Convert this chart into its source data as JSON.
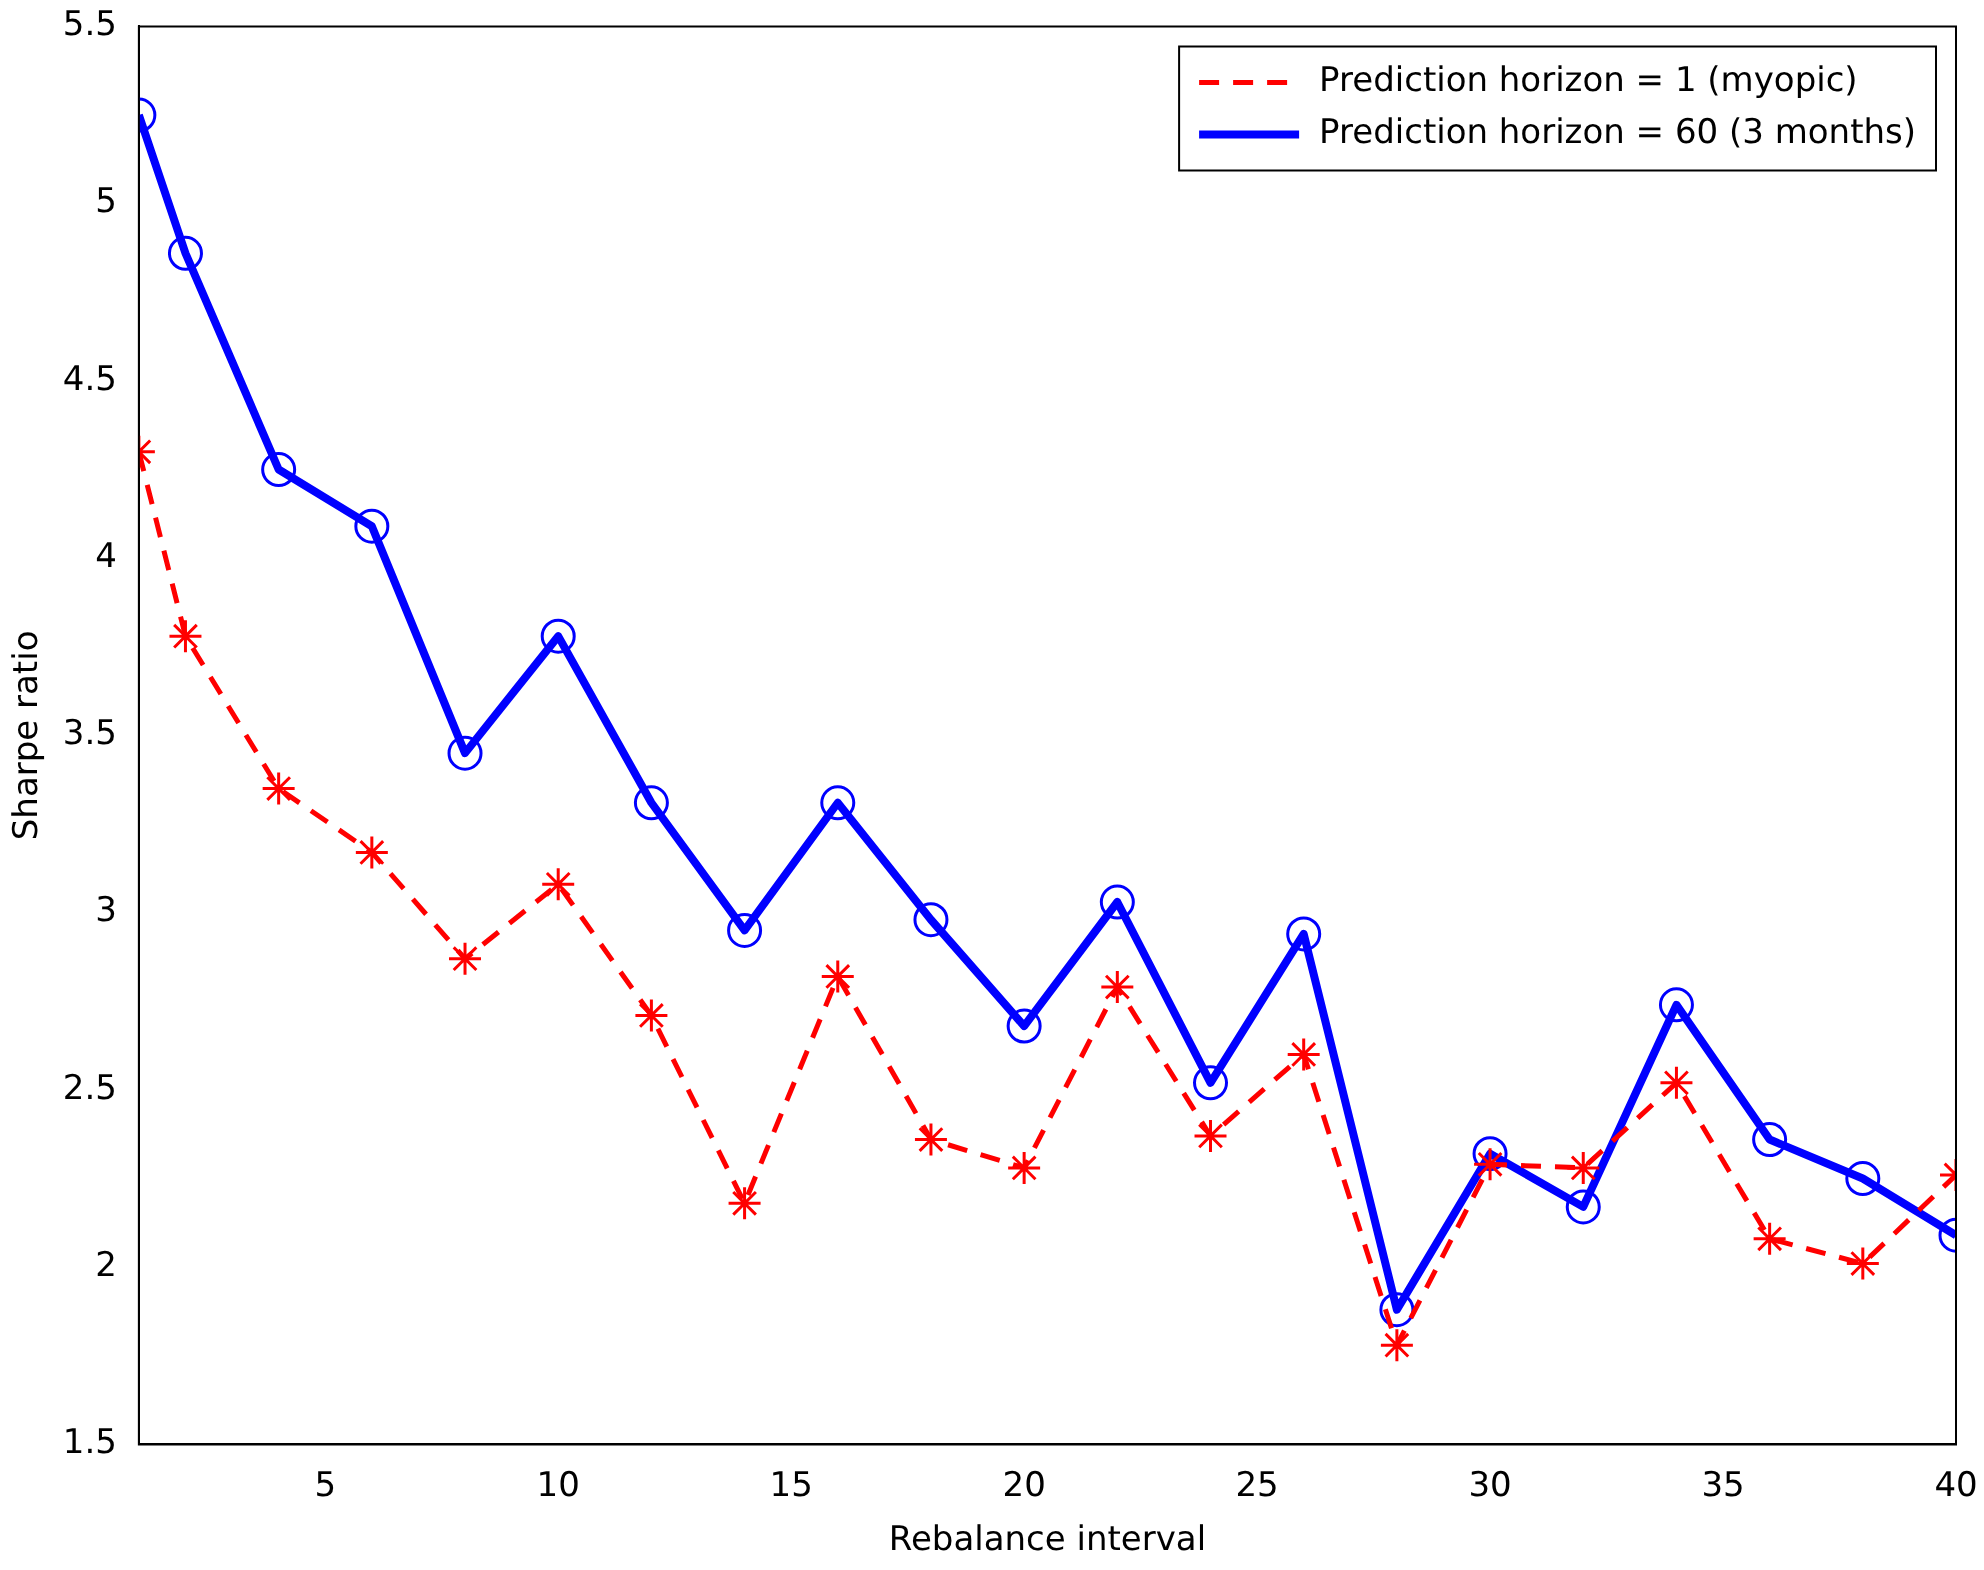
{
  "chart_data": {
    "type": "line",
    "xlabel": "Rebalance interval",
    "ylabel": "Sharpe ratio",
    "x": [
      1,
      2,
      4,
      6,
      8,
      10,
      12,
      14,
      16,
      18,
      20,
      22,
      24,
      26,
      28,
      30,
      32,
      34,
      36,
      38,
      40
    ],
    "series": [
      {
        "name": "Prediction horizon = 1 (myopic)",
        "color": "#ff0000",
        "marker": "cross",
        "line_style": "dashed",
        "values": [
          4.3,
          3.78,
          3.35,
          3.17,
          2.87,
          3.08,
          2.71,
          2.18,
          2.82,
          2.36,
          2.28,
          2.79,
          2.37,
          2.6,
          1.78,
          2.29,
          2.28,
          2.52,
          2.08,
          2.01,
          2.26
        ]
      },
      {
        "name": "Prediction horizon = 60 (3 months)",
        "color": "#0000ff",
        "marker": "circle",
        "line_style": "solid",
        "values": [
          5.25,
          4.86,
          4.25,
          4.09,
          3.45,
          3.78,
          3.31,
          2.95,
          3.31,
          2.98,
          2.68,
          3.03,
          2.52,
          2.94,
          1.88,
          2.32,
          2.17,
          2.74,
          2.36,
          2.25,
          2.09
        ]
      }
    ],
    "xlim": [
      1,
      40
    ],
    "xticks": [
      5,
      10,
      15,
      20,
      25,
      30,
      35,
      40
    ],
    "ylim": [
      1.5,
      5.5
    ],
    "yticks": [
      1.5,
      2,
      2.5,
      3,
      3.5,
      4,
      4.5,
      5,
      5.5
    ],
    "grid": false,
    "legend": "top right"
  }
}
